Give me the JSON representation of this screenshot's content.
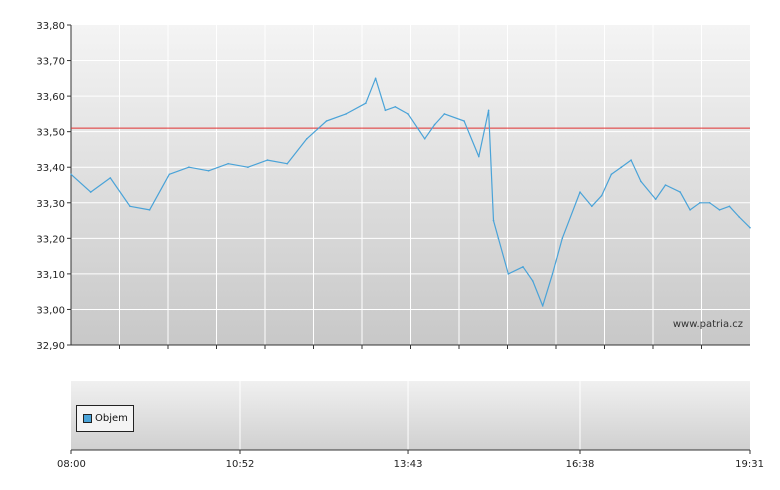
{
  "chart_data": {
    "type": "line",
    "price_panel": {
      "y_ticks": [
        "33,80",
        "33,70",
        "33,60",
        "33,50",
        "33,40",
        "33,30",
        "33,20",
        "33,10",
        "33,00",
        "32,90"
      ],
      "ylim": [
        32.9,
        33.8
      ],
      "reference_line": {
        "value": 33.51,
        "color": "#e03030"
      },
      "series": {
        "color": "#4aa3d8",
        "x": [
          "08:00",
          "08:20",
          "08:40",
          "09:00",
          "09:20",
          "09:40",
          "10:00",
          "10:20",
          "10:40",
          "11:00",
          "11:20",
          "11:40",
          "12:00",
          "12:20",
          "12:40",
          "13:00",
          "13:10",
          "13:20",
          "13:30",
          "13:43",
          "14:00",
          "14:10",
          "14:20",
          "14:40",
          "14:55",
          "15:05",
          "15:10",
          "15:15",
          "15:25",
          "15:40",
          "15:50",
          "16:00",
          "16:10",
          "16:20",
          "16:38",
          "16:50",
          "17:00",
          "17:10",
          "17:20",
          "17:30",
          "17:40",
          "17:55",
          "18:05",
          "18:20",
          "18:30",
          "18:40",
          "18:50",
          "19:00",
          "19:10",
          "19:20",
          "19:31"
        ],
        "y": [
          33.38,
          33.33,
          33.37,
          33.29,
          33.28,
          33.38,
          33.4,
          33.39,
          33.41,
          33.4,
          33.42,
          33.41,
          33.48,
          33.53,
          33.55,
          33.58,
          33.65,
          33.56,
          33.57,
          33.55,
          33.48,
          33.52,
          33.55,
          33.53,
          33.43,
          33.56,
          33.25,
          33.2,
          33.1,
          33.12,
          33.08,
          33.01,
          33.1,
          33.2,
          33.33,
          33.29,
          33.32,
          33.38,
          33.4,
          33.42,
          33.36,
          33.31,
          33.35,
          33.33,
          33.28,
          33.3,
          33.3,
          33.28,
          33.29,
          33.26,
          33.23
        ]
      }
    },
    "volume_panel": {
      "legend_label": "Objem",
      "legend_color": "#4aa3d8"
    },
    "x_ticks": [
      "08:00",
      "10:52",
      "13:43",
      "16:38",
      "19:31"
    ],
    "watermark": "www.patria.cz",
    "grid": true
  }
}
